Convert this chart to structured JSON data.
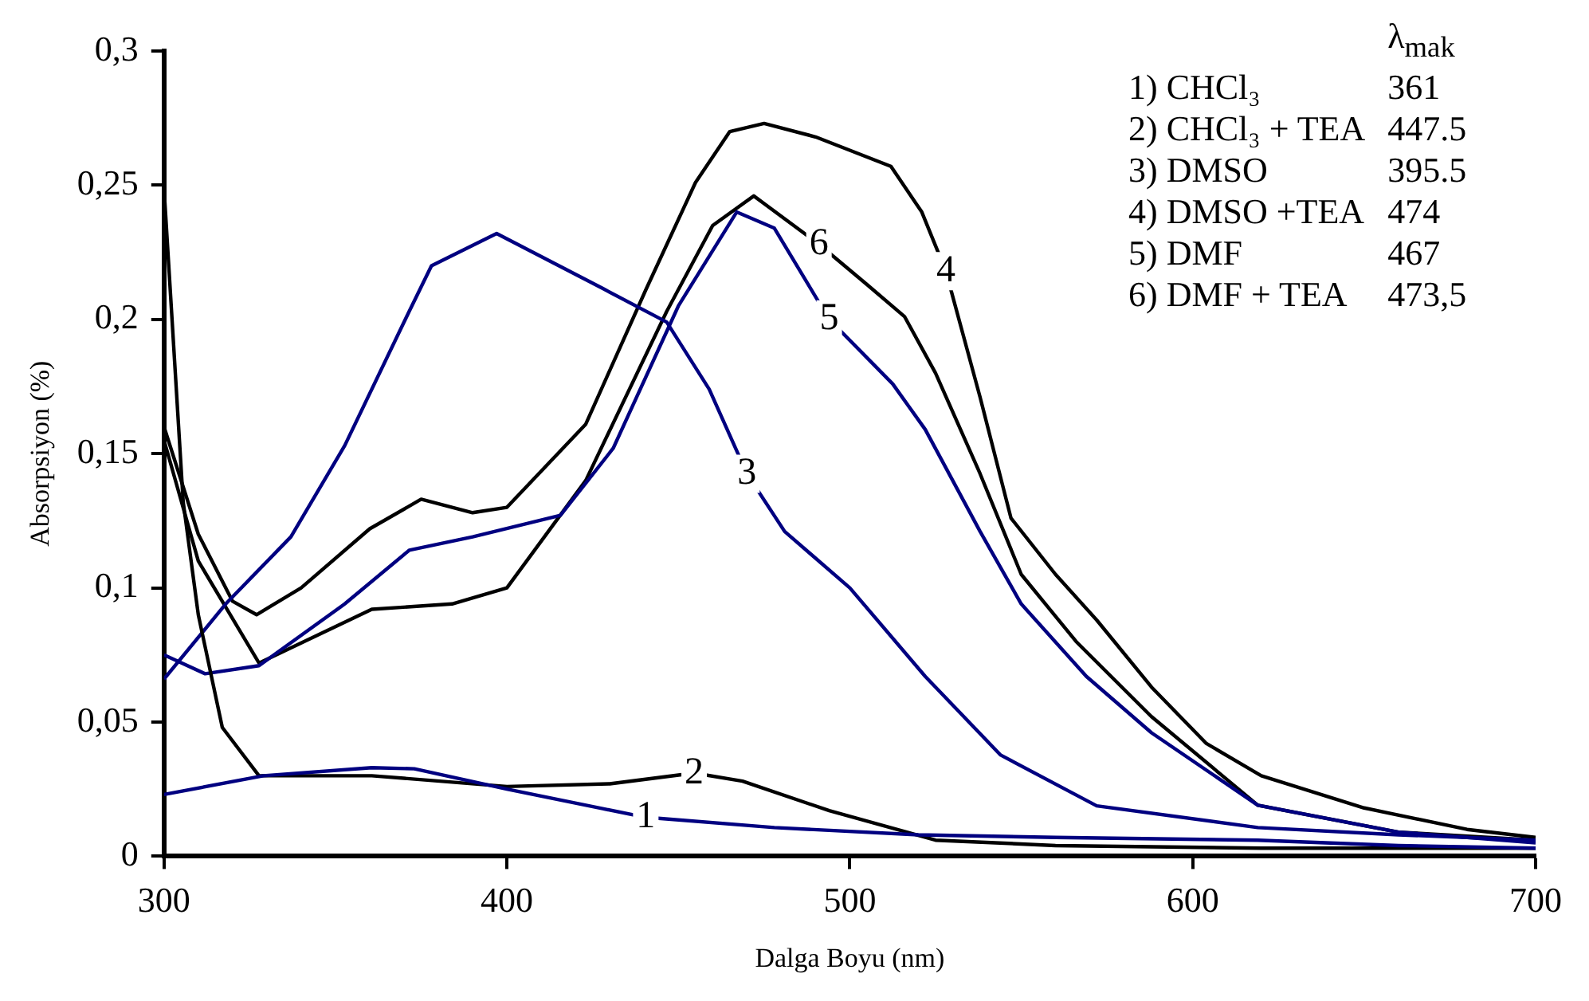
{
  "chart_data": {
    "type": "line",
    "xlabel": "Dalga Boyu (nm)",
    "ylabel": "Absorpsiyon (%)",
    "xlim": [
      300,
      700
    ],
    "xticks": [
      300,
      400,
      500,
      600,
      700
    ],
    "ylim": [
      0,
      0.3
    ],
    "yticks": [
      0,
      {
        "value": 0.05,
        "label": "0,05"
      },
      {
        "value": 0.1,
        "label": "0,1"
      },
      {
        "value": 0.15,
        "label": "0,15"
      },
      {
        "value": 0.2,
        "label": "0,2"
      },
      {
        "value": 0.25,
        "label": "0,25"
      },
      {
        "value": 0.3,
        "label": "0,3"
      }
    ],
    "grid": false,
    "marker": "none",
    "line_style": "solid",
    "series": [
      {
        "color": "#000080",
        "x": [
          300,
          329,
          360.6,
          373,
          400,
          440.5,
          478,
          520,
          560,
          619,
          660,
          700
        ],
        "values": [
          0.023,
          0.03,
          0.033,
          0.0326,
          0.025,
          0.0145,
          0.0107,
          0.008,
          0.007,
          0.006,
          0.004,
          0.003
        ]
      },
      {
        "color": "#000000",
        "x": [
          300,
          305.6,
          310,
          317,
          327.7,
          360.6,
          400,
          430,
          454.6,
          468.7,
          494,
          525,
          560,
          620,
          700
        ],
        "values": [
          0.249,
          0.132,
          0.09,
          0.048,
          0.03,
          0.03,
          0.026,
          0.027,
          0.031,
          0.028,
          0.017,
          0.006,
          0.004,
          0.003,
          0.003
        ]
      },
      {
        "color": "#000080",
        "x": [
          300,
          318,
          337,
          352.7,
          371.5,
          378,
          397,
          428,
          446.6,
          459,
          470,
          481,
          500,
          522,
          544,
          572,
          619,
          660,
          700
        ],
        "values": [
          0.066,
          0.094,
          0.119,
          0.153,
          0.203,
          0.22,
          0.232,
          0.2115,
          0.199,
          0.174,
          0.1425,
          0.121,
          0.1,
          0.067,
          0.0377,
          0.0188,
          0.0107,
          0.008,
          0.006
        ]
      },
      {
        "color": "#000000",
        "x": [
          300,
          310,
          320,
          327,
          340,
          360,
          375,
          390,
          400,
          423,
          440.5,
          455,
          465,
          475,
          490,
          512,
          521,
          528,
          538,
          547,
          560,
          572,
          588,
          604,
          620,
          650,
          680,
          700
        ],
        "values": [
          0.16,
          0.12,
          0.095,
          0.09,
          0.1,
          0.122,
          0.133,
          0.128,
          0.13,
          0.161,
          0.211,
          0.251,
          0.27,
          0.273,
          0.268,
          0.257,
          0.24,
          0.218,
          0.171,
          0.126,
          0.105,
          0.088,
          0.063,
          0.042,
          0.03,
          0.018,
          0.01,
          0.007
        ]
      },
      {
        "color": "#000080",
        "x": [
          300,
          312,
          327.7,
          352.7,
          371.5,
          390,
          415.6,
          431,
          450,
          467,
          478,
          494,
          512.5,
          522,
          538,
          550,
          569,
          588,
          619,
          660,
          700
        ],
        "values": [
          0.075,
          0.068,
          0.071,
          0.094,
          0.114,
          0.119,
          0.127,
          0.152,
          0.205,
          0.24,
          0.234,
          0.2,
          0.176,
          0.159,
          0.121,
          0.094,
          0.067,
          0.046,
          0.019,
          0.009,
          0.005
        ]
      },
      {
        "color": "#000000",
        "x": [
          300,
          310,
          327.7,
          360.6,
          384,
          400,
          423,
          446.6,
          460,
          472,
          491,
          505,
          516,
          525,
          538,
          550,
          566,
          588,
          619,
          660,
          700
        ],
        "values": [
          0.155,
          0.11,
          0.072,
          0.092,
          0.094,
          0.1,
          0.14,
          0.203,
          0.235,
          0.246,
          0.228,
          0.213,
          0.201,
          0.18,
          0.1425,
          0.105,
          0.08,
          0.052,
          0.019,
          0.009,
          0.006
        ]
      }
    ],
    "annotations": [
      {
        "text": "1",
        "x": 440.5,
        "y": 0.0145
      },
      {
        "text": "2",
        "x": 454.6,
        "y": 0.031
      },
      {
        "text": "3",
        "x": 470,
        "y": 0.1425
      },
      {
        "text": "4",
        "x": 528,
        "y": 0.218
      },
      {
        "text": "5",
        "x": 494,
        "y": 0.2
      },
      {
        "text": "6",
        "x": 491,
        "y": 0.228
      },
      "λ$_{mak}$",
      "1) CHCl₃",
      "361",
      "2) CHCl₃ + TEA",
      "447.5",
      "3) DMSO",
      "395.5",
      "4) DMSO +TEA",
      "474",
      "5) DMF",
      "467",
      "6) DMF + TEA",
      "473,5"
    ]
  }
}
